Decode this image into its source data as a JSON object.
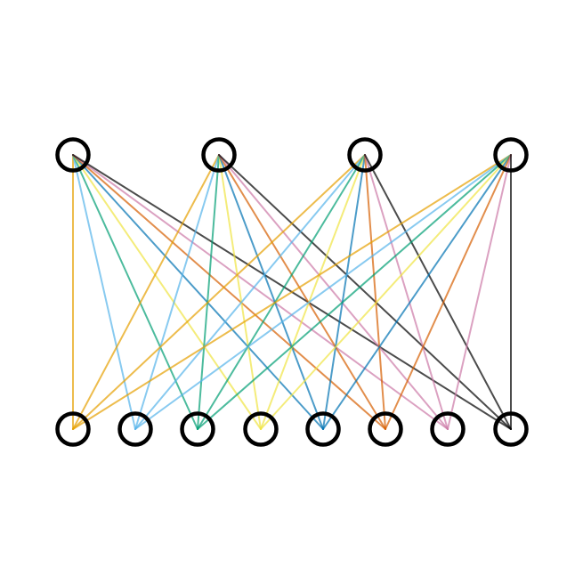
{
  "diagram": {
    "type": "complete-bipartite-graph",
    "top_node_count": 4,
    "bottom_node_count": 8,
    "edge_colors": [
      "#E69F00",
      "#56B4E9",
      "#009E73",
      "#F0E442",
      "#0072B2",
      "#D55E00",
      "#CC79A7",
      "#000000"
    ],
    "edge_opacity": 0.7,
    "node_fill": "#ffffff",
    "node_stroke": "#000000"
  }
}
